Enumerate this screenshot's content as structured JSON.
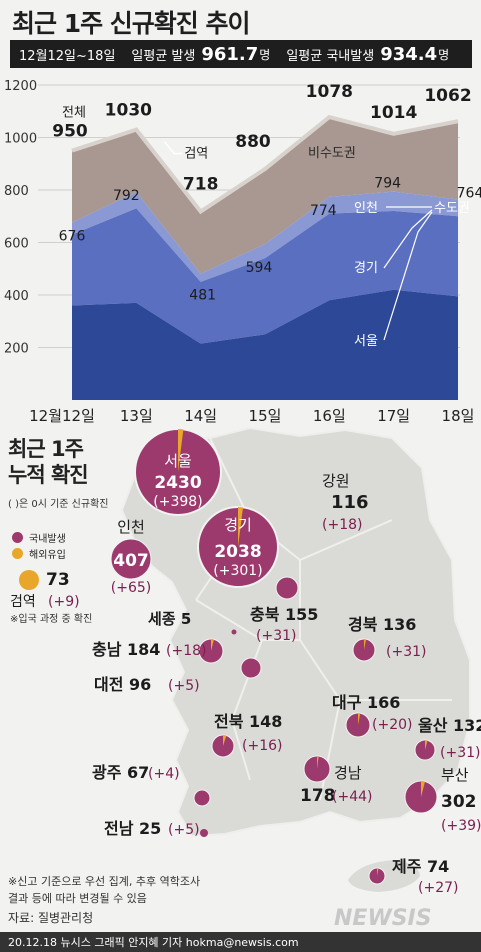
{
  "header": {
    "title": "최근 1주 신규확진 추이",
    "period": "12월12일~18일",
    "avg_label": "일평균 발생",
    "avg_value": "961.7",
    "avg_unit": "명",
    "domestic_label": "일평균 국내발생",
    "domestic_value": "934.4",
    "domestic_unit": "명"
  },
  "chart_data": {
    "type": "area",
    "categories": [
      "12월12일",
      "13일",
      "14일",
      "15일",
      "16일",
      "17일",
      "18일"
    ],
    "y_ticks": [
      200,
      400,
      600,
      800,
      1000,
      1200
    ],
    "ylim": [
      0,
      1200
    ],
    "series": [
      {
        "name": "전체",
        "values": [
          950,
          1030,
          718,
          880,
          1078,
          1014,
          1062
        ]
      },
      {
        "name": "수도권",
        "values": [
          676,
          792,
          481,
          594,
          774,
          794,
          764
        ]
      },
      {
        "name": "인천",
        "values": [
          650,
          760,
          470,
          580,
          760,
          780,
          750
        ]
      },
      {
        "name": "경기",
        "values": [
          630,
          730,
          450,
          540,
          710,
          720,
          700
        ]
      },
      {
        "name": "서울",
        "values": [
          360,
          370,
          215,
          250,
          380,
          420,
          395
        ]
      }
    ],
    "labels": {
      "total_prefix": "전체",
      "quarantine": "검역",
      "non_capital": "비수도권",
      "incheon": "인천",
      "capital": "수도권",
      "gyeonggi": "경기",
      "seoul": "서울"
    },
    "colors": {
      "non_capital": "#a99791",
      "incheon": "#8a99d4",
      "gyeonggi": "#5a6fc0",
      "seoul": "#2e4898",
      "quarantine": "#d8d2cd"
    }
  },
  "map": {
    "title_line1": "최근 1주",
    "title_line2": "누적 확진",
    "note": "( )은 0시 기준 신규확진",
    "legend_domestic": "국내발생",
    "legend_overseas": "해외유입",
    "color_domestic": "#9c3a6e",
    "color_overseas": "#e8a62a",
    "quarantine": {
      "name": "검역",
      "total": "73",
      "new": "(+9)",
      "note": "※입국 과정 중 확진"
    },
    "regions": [
      {
        "key": "seoul",
        "name": "서울",
        "total": "2430",
        "new": "(+398)"
      },
      {
        "key": "gyeonggi",
        "name": "경기",
        "total": "2038",
        "new": "(+301)"
      },
      {
        "key": "incheon",
        "name": "인천",
        "total": "407",
        "new": "(+65)"
      },
      {
        "key": "gangwon",
        "name": "강원",
        "total": "116",
        "new": "(+18)"
      },
      {
        "key": "sejong",
        "name": "세종",
        "total": "5",
        "new": ""
      },
      {
        "key": "chungbuk",
        "name": "충북",
        "total": "155",
        "new": "(+31)"
      },
      {
        "key": "chungnam",
        "name": "충남",
        "total": "184",
        "new": "(+18)"
      },
      {
        "key": "daejeon",
        "name": "대전",
        "total": "96",
        "new": "(+5)"
      },
      {
        "key": "gyeongbuk",
        "name": "경북",
        "total": "136",
        "new": "(+31)"
      },
      {
        "key": "jeonbuk",
        "name": "전북",
        "total": "148",
        "new": "(+16)"
      },
      {
        "key": "daegu",
        "name": "대구",
        "total": "166",
        "new": "(+20)"
      },
      {
        "key": "ulsan",
        "name": "울산",
        "total": "132",
        "new": "(+31)"
      },
      {
        "key": "gwangju",
        "name": "광주",
        "total": "67",
        "new": "(+4)"
      },
      {
        "key": "gyeongnam",
        "name": "경남",
        "total": "178",
        "new": "(+44)"
      },
      {
        "key": "busan",
        "name": "부산",
        "total": "302",
        "new": "(+39)"
      },
      {
        "key": "jeonnam",
        "name": "전남",
        "total": "25",
        "new": "(+5)"
      },
      {
        "key": "jeju",
        "name": "제주",
        "total": "74",
        "new": "(+27)"
      }
    ]
  },
  "footer": {
    "note_line1": "※신고 기준으로 우선 집계, 추후 역학조사",
    "note_line2": "결과 등에 따라 변경될 수 있음",
    "source": "자료: 질병관리청",
    "credit": "20.12.18 뉴시스 그래픽 안지혜 기자 hokma@newsis.com",
    "logo": "NEWSIS"
  }
}
